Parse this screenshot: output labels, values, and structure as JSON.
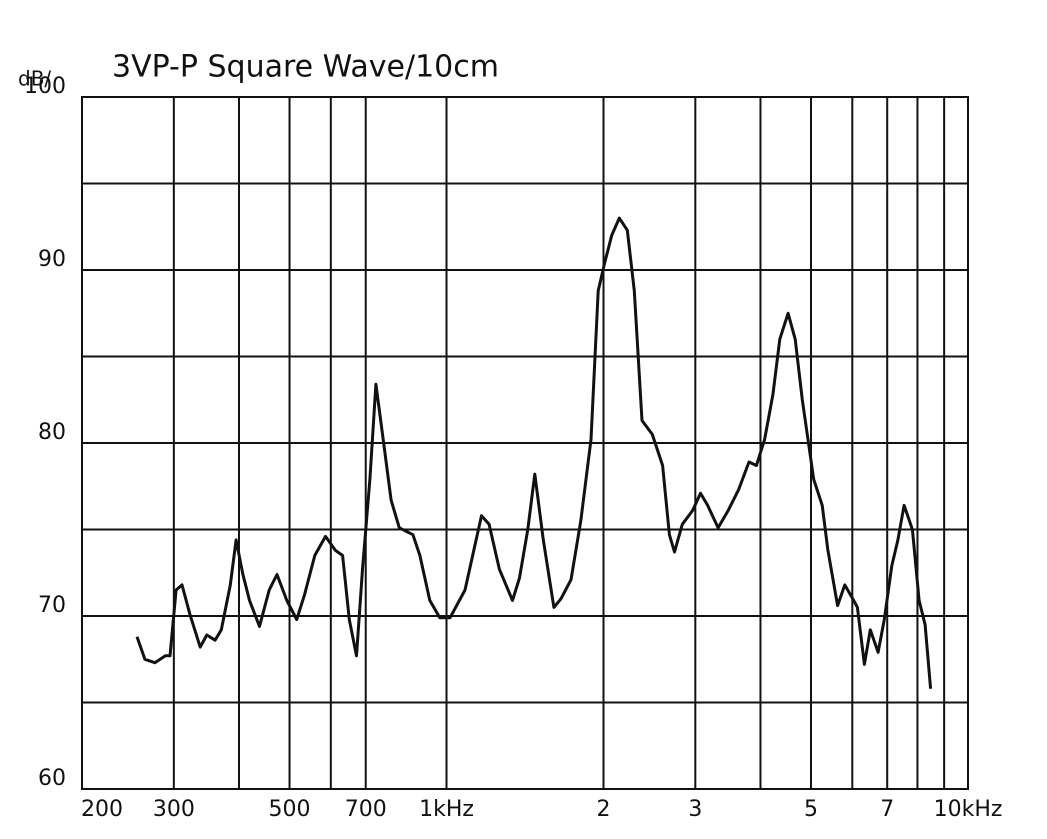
{
  "chart_data": {
    "type": "line",
    "title": "3VP-P Square Wave/10cm",
    "y_label": "dB/",
    "log_x": true,
    "grid": true,
    "color": "#111111",
    "x": [
      255,
      264,
      276,
      289,
      295,
      303,
      311,
      322,
      337,
      347,
      360,
      370,
      385,
      395,
      407,
      419,
      438,
      457,
      473,
      494,
      516,
      534,
      559,
      586,
      612,
      632,
      651,
      672,
      690,
      713,
      732,
      748,
      783,
      812,
      862,
      889,
      929,
      971,
      1016,
      1085,
      1167,
      1207,
      1263,
      1338,
      1380,
      1432,
      1477,
      1533,
      1607,
      1658,
      1733,
      1809,
      1893,
      1954,
      2006,
      2074,
      2145,
      2222,
      2291,
      2371,
      2481,
      2596,
      2676,
      2736,
      2832,
      2964,
      3069,
      3167,
      3317,
      3468,
      3632,
      3803,
      3929,
      4073,
      4226,
      4357,
      4519,
      4663,
      4812,
      5059,
      5252,
      5387,
      5623,
      5805,
      6011,
      6136,
      6330,
      6495,
      6725,
      6911,
      7144,
      7339,
      7542,
      7822,
      8057,
      8273,
      8476
    ],
    "values": [
      68.8,
      67.5,
      67.3,
      67.7,
      67.7,
      71.5,
      71.8,
      70.1,
      68.2,
      68.9,
      68.6,
      69.2,
      71.8,
      74.4,
      72.4,
      70.9,
      69.4,
      71.5,
      72.4,
      70.9,
      69.8,
      71.2,
      73.5,
      74.6,
      73.8,
      73.5,
      69.8,
      67.7,
      72.7,
      77.9,
      83.4,
      81.3,
      76.7,
      75.1,
      74.7,
      73.5,
      70.9,
      69.9,
      69.9,
      71.5,
      75.8,
      75.3,
      72.7,
      70.9,
      72.2,
      75.0,
      78.2,
      74.4,
      70.5,
      71.0,
      72.1,
      75.5,
      80.2,
      88.8,
      90.3,
      92.0,
      93.0,
      92.3,
      88.8,
      81.3,
      80.5,
      78.7,
      74.7,
      73.7,
      75.3,
      76.1,
      77.1,
      76.4,
      75.1,
      76.1,
      77.3,
      78.9,
      78.7,
      80.2,
      82.8,
      86.0,
      87.5,
      86.0,
      82.5,
      77.9,
      76.4,
      73.8,
      70.6,
      71.8,
      71.0,
      70.5,
      67.2,
      69.2,
      67.9,
      69.8,
      72.9,
      74.4,
      76.4,
      75.0,
      70.9,
      69.5,
      65.8
    ],
    "xlim": [
      200,
      10000
    ],
    "xticks": [
      200,
      300,
      500,
      700,
      {
        "value": 1000,
        "label": "1kHz"
      },
      {
        "value": 2000,
        "label": "2"
      },
      {
        "value": 3000,
        "label": "3"
      },
      {
        "value": 5000,
        "label": "5"
      },
      {
        "value": 7000,
        "label": "7"
      },
      {
        "value": 10000,
        "label": "10kHz"
      }
    ],
    "minor_xticks": [
      400,
      600,
      4000,
      6000,
      8000,
      9000
    ],
    "ylim": [
      60,
      100
    ],
    "yticks": [
      60,
      70,
      80,
      90,
      100
    ],
    "minor_yticks": [
      65,
      75,
      85,
      95
    ]
  }
}
